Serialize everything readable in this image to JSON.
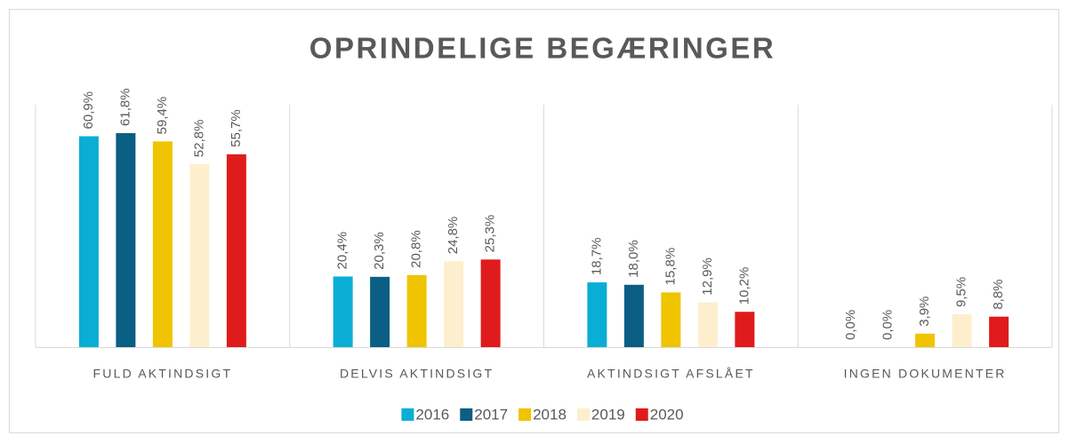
{
  "chart_data": {
    "type": "bar",
    "title": "OPRINDELIGE BEGÆRINGER",
    "categories": [
      "FULD AKTINDSIGT",
      "DELVIS AKTINDSIGT",
      "AKTINDSIGT AFSLÅET",
      "INGEN DOKUMENTER"
    ],
    "series": [
      {
        "name": "2016",
        "color": "#0aaed5",
        "values": [
          60.9,
          20.4,
          18.7,
          0.0
        ],
        "value_labels": [
          "60,9%",
          "20,4%",
          "18,7%",
          "0,0%"
        ]
      },
      {
        "name": "2017",
        "color": "#0b5e84",
        "values": [
          61.8,
          20.3,
          18.0,
          0.0
        ],
        "value_labels": [
          "61,8%",
          "20,3%",
          "18,0%",
          "0,0%"
        ]
      },
      {
        "name": "2018",
        "color": "#f0c400",
        "values": [
          59.4,
          20.8,
          15.8,
          3.9
        ],
        "value_labels": [
          "59,4%",
          "20,8%",
          "15,8%",
          "3,9%"
        ]
      },
      {
        "name": "2019",
        "color": "#fdefcd",
        "values": [
          52.8,
          24.8,
          12.9,
          9.5
        ],
        "value_labels": [
          "52,8%",
          "24,8%",
          "12,9%",
          "9,5%"
        ]
      },
      {
        "name": "2020",
        "color": "#e01b1b",
        "values": [
          55.7,
          25.3,
          10.2,
          8.8
        ],
        "value_labels": [
          "55,7%",
          "25,3%",
          "10,2%",
          "8,8%"
        ]
      }
    ],
    "ylim": [
      0,
      70
    ],
    "legend": "bottom"
  }
}
